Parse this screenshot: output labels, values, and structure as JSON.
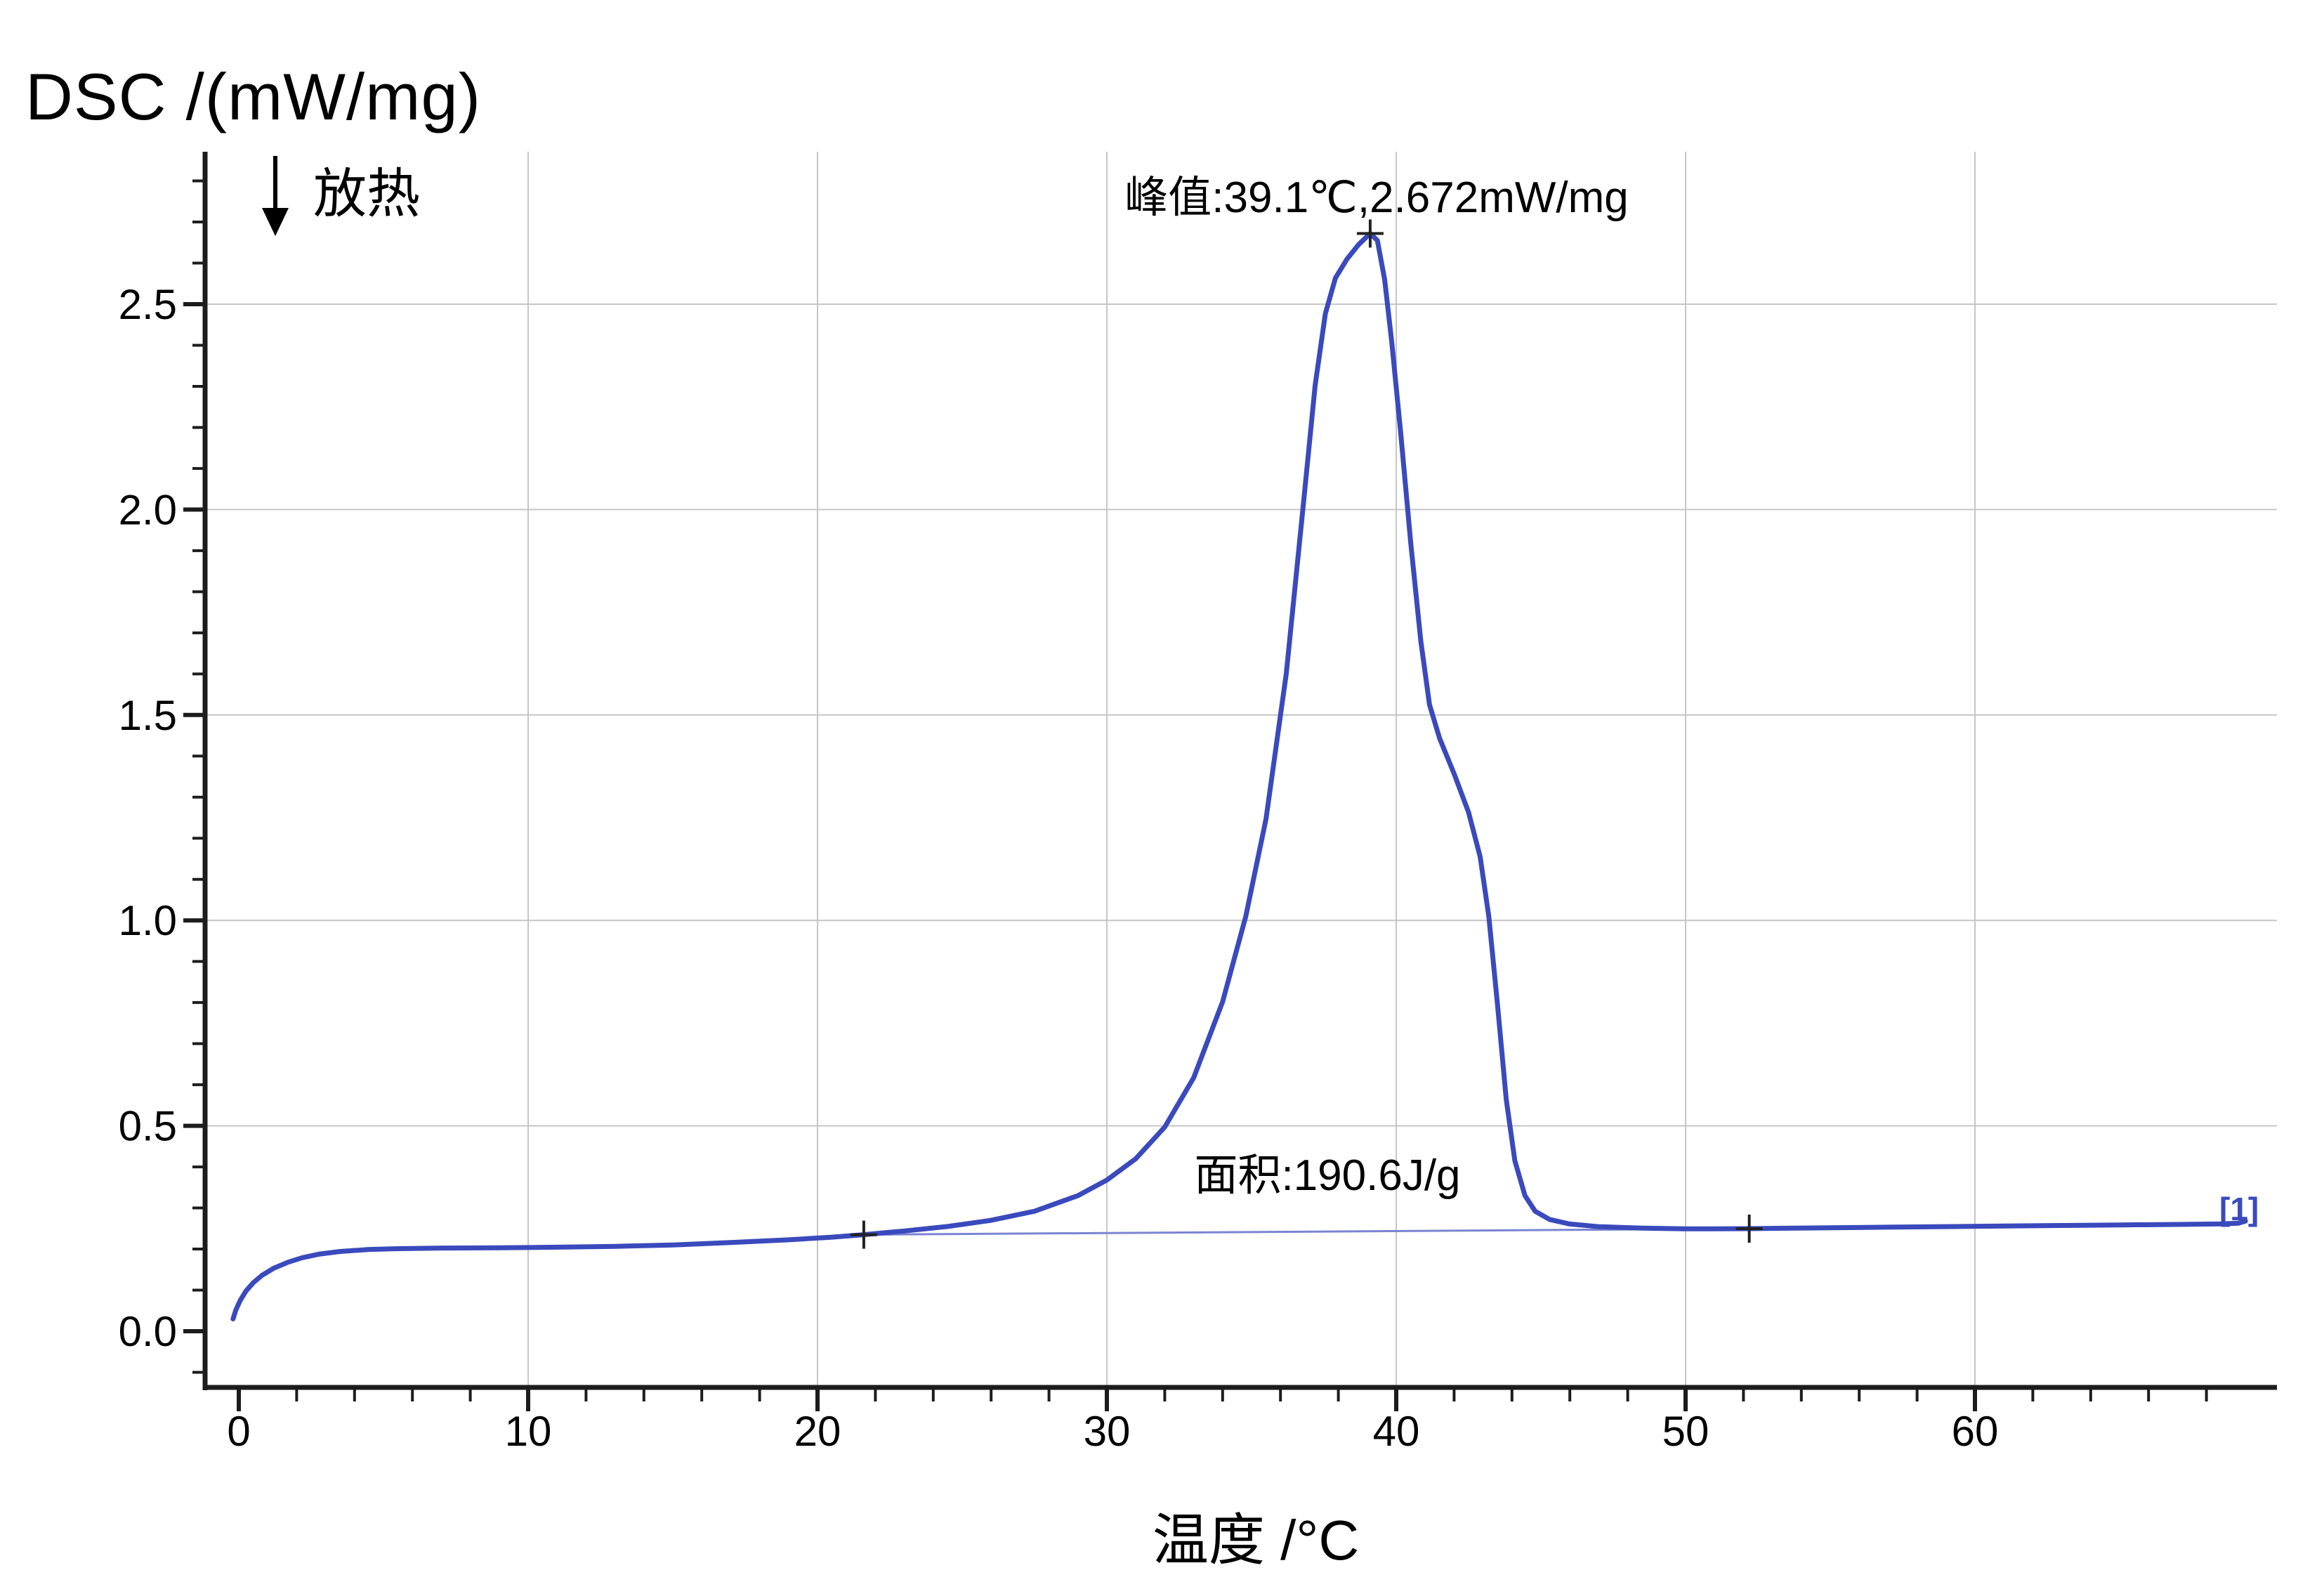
{
  "title": "DSC /(mW/mg)",
  "annotations": {
    "exo": "放热",
    "peak": "峰值:39.1℃,2.672mW/mg",
    "area": "面积:190.6J/g",
    "curve_tag": "[1]"
  },
  "colors": {
    "curve": "#3a4abd",
    "sigmoid_baseline": "#7b84d2",
    "grid": "#c6c6c6",
    "axis": "#1c1c1c",
    "text": "#000000",
    "tag_blue": "#3a4abd",
    "marker": "#222222",
    "background": "#ffffff"
  },
  "chart_data": {
    "type": "line",
    "title": "DSC /(mW/mg)",
    "xlabel": "温度 /°C",
    "ylabel": "DSC /(mW/mg)",
    "xlim": [
      -1.2,
      70.4
    ],
    "ylim": [
      -0.145,
      2.87
    ],
    "grid": true,
    "x_axis": {
      "major_ticks": [
        0,
        10,
        20,
        30,
        40,
        50,
        60
      ],
      "tick_labels": [
        "0",
        "10",
        "20",
        "30",
        "40",
        "50",
        "60"
      ],
      "minor_step": 2,
      "minor_range": [
        2,
        68
      ],
      "gridline_at": [
        10,
        20,
        30,
        40,
        50,
        60
      ]
    },
    "y_axis": {
      "major_ticks": [
        0,
        0.5,
        1.0,
        1.5,
        2.0,
        2.5
      ],
      "tick_labels": [
        "0.0",
        "0.5",
        "1.0",
        "1.5",
        "2.0",
        "2.5"
      ],
      "minor_step": 0.1,
      "minor_range": [
        -0.1,
        2.8
      ],
      "gridline_at": [
        0.5,
        1.0,
        1.5,
        2.0,
        2.5
      ]
    },
    "peak": {
      "temperature_c": 39.1,
      "heat_flow_mw_mg": 2.672
    },
    "area_j_per_g": 190.6,
    "exotherm_direction": "down",
    "series": [
      {
        "name": "dsc-curve",
        "points": [
          [
            -0.2,
            0.03
          ],
          [
            -0.1,
            0.052
          ],
          [
            0.05,
            0.075
          ],
          [
            0.25,
            0.098
          ],
          [
            0.5,
            0.118
          ],
          [
            0.8,
            0.136
          ],
          [
            1.2,
            0.153
          ],
          [
            1.7,
            0.168
          ],
          [
            2.2,
            0.179
          ],
          [
            2.8,
            0.188
          ],
          [
            3.5,
            0.194
          ],
          [
            4.5,
            0.199
          ],
          [
            5.5,
            0.201
          ],
          [
            7,
            0.2025
          ],
          [
            9,
            0.203
          ],
          [
            11,
            0.2045
          ],
          [
            13,
            0.2065
          ],
          [
            15,
            0.21
          ],
          [
            17,
            0.216
          ],
          [
            19,
            0.2225
          ],
          [
            20.5,
            0.229
          ],
          [
            21.6,
            0.235
          ],
          [
            23,
            0.244
          ],
          [
            24.5,
            0.255
          ],
          [
            26,
            0.27
          ],
          [
            27.5,
            0.292
          ],
          [
            29,
            0.33
          ],
          [
            30,
            0.368
          ],
          [
            31,
            0.42
          ],
          [
            32,
            0.497
          ],
          [
            33,
            0.617
          ],
          [
            34,
            0.802
          ],
          [
            34.8,
            1.01
          ],
          [
            35.5,
            1.247
          ],
          [
            36.2,
            1.6
          ],
          [
            36.8,
            2.02
          ],
          [
            37.2,
            2.303
          ],
          [
            37.55,
            2.477
          ],
          [
            37.9,
            2.564
          ],
          [
            38.3,
            2.61
          ],
          [
            38.7,
            2.645
          ],
          [
            39.1,
            2.672
          ],
          [
            39.35,
            2.655
          ],
          [
            39.6,
            2.56
          ],
          [
            39.85,
            2.405
          ],
          [
            40.15,
            2.19
          ],
          [
            40.5,
            1.92
          ],
          [
            40.85,
            1.68
          ],
          [
            41.15,
            1.525
          ],
          [
            41.5,
            1.443
          ],
          [
            42,
            1.357
          ],
          [
            42.5,
            1.263
          ],
          [
            42.9,
            1.155
          ],
          [
            43.2,
            1.01
          ],
          [
            43.5,
            0.795
          ],
          [
            43.8,
            0.565
          ],
          [
            44.1,
            0.415
          ],
          [
            44.45,
            0.33
          ],
          [
            44.8,
            0.292
          ],
          [
            45.3,
            0.272
          ],
          [
            46,
            0.261
          ],
          [
            47,
            0.2545
          ],
          [
            48.5,
            0.2508
          ],
          [
            50,
            0.2494
          ],
          [
            51,
            0.2492
          ],
          [
            52.2,
            0.2497
          ],
          [
            53.5,
            0.2507
          ],
          [
            55,
            0.2518
          ],
          [
            57,
            0.2532
          ],
          [
            59,
            0.2546
          ],
          [
            61,
            0.256
          ],
          [
            63,
            0.2574
          ],
          [
            65,
            0.2588
          ],
          [
            67,
            0.26
          ],
          [
            68.5,
            0.2612
          ],
          [
            69.1,
            0.263
          ],
          [
            69.35,
            0.268
          ]
        ]
      },
      {
        "name": "sigmoid-baseline",
        "points": [
          [
            21.6,
            0.235
          ],
          [
            52.2,
            0.2497
          ]
        ]
      }
    ],
    "markers": [
      {
        "name": "baseline-start-marker",
        "x": 21.6,
        "y": 0.235
      },
      {
        "name": "peak-marker",
        "x": 39.1,
        "y": 2.672
      },
      {
        "name": "baseline-end-marker",
        "x": 52.2,
        "y": 0.2497
      }
    ]
  }
}
